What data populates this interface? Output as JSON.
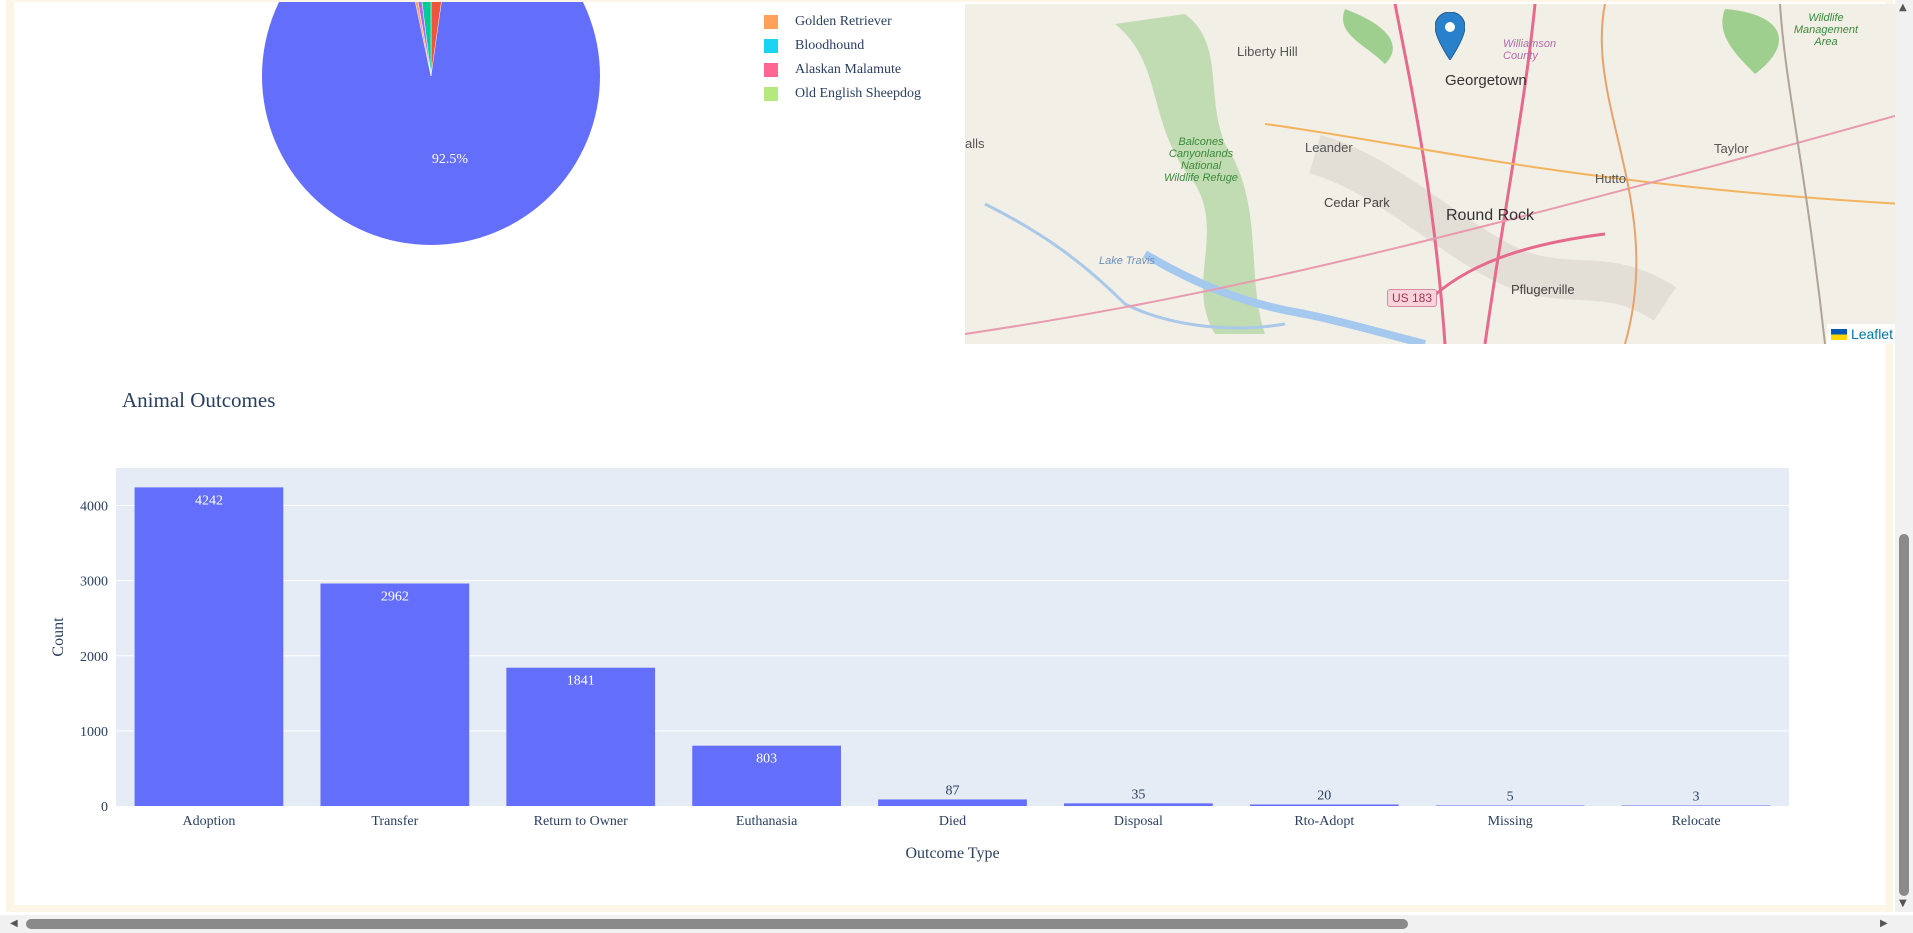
{
  "pie": {
    "label": "92.5%",
    "legend": [
      {
        "name": "Golden Retriever",
        "color": "#FFA15A"
      },
      {
        "name": "Bloodhound",
        "color": "#19D3F3"
      },
      {
        "name": "Alaskan Malamute",
        "color": "#FF6692"
      },
      {
        "name": "Old English Sheepdog",
        "color": "#B6E880"
      }
    ],
    "main_color": "#636efa"
  },
  "map": {
    "labels": [
      "Liberty Hill",
      "Georgetown",
      "Williamson County",
      "Wildlife Management Area",
      "Leander",
      "Balcones Canyonlands National Wildlife Refuge",
      "Taylor",
      "Hutto",
      "Cedar Park",
      "Round Rock",
      "Lake Travis",
      "US 183",
      "Pflugerville",
      "alls"
    ],
    "attribution": "Leaflet"
  },
  "chart_data": {
    "type": "bar",
    "title": "Animal Outcomes",
    "xlabel": "Outcome Type",
    "ylabel": "Count",
    "categories": [
      "Adoption",
      "Transfer",
      "Return to Owner",
      "Euthanasia",
      "Died",
      "Disposal",
      "Rto-Adopt",
      "Missing",
      "Relocate"
    ],
    "values": [
      4242,
      2962,
      1841,
      803,
      87,
      35,
      20,
      5,
      3
    ],
    "ylim": [
      0,
      4500
    ],
    "yticks": [
      0,
      1000,
      2000,
      3000,
      4000
    ],
    "bar_color": "#636efa",
    "plot_bg": "#e5ecf6",
    "grid": true
  }
}
